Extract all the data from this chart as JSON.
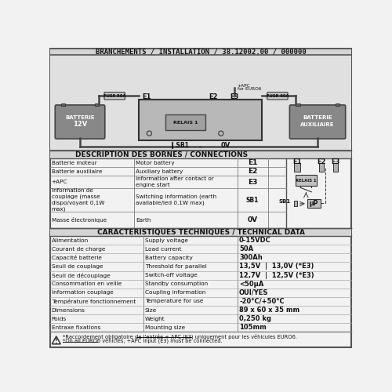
{
  "title": "BRANCHEMENTS / INSTALLATION / 38.12002.00 / 000000",
  "connections_title": "DESCRIPTION DES BORNES / CONNECTIONS",
  "connections": [
    [
      "Batterie moteur",
      "Motor battery",
      "E1"
    ],
    [
      "Batterie auxiliaire",
      "Auxiliary battery",
      "E2"
    ],
    [
      "+APC",
      "Information after contact or\nengine start",
      "E3"
    ],
    [
      "Information de\ncouplage (masse\ndispo/voyant 0,1W\nmax)",
      "Switching Information (earth\navailable/led 0.1W max)",
      "SB1"
    ],
    [
      "Masse électronique",
      "Earth",
      "0V"
    ]
  ],
  "tech_title": "CARACTERISTIQUES TECHNIQUES / TECHNICAL DATA",
  "tech_data": [
    [
      "Alimentation",
      "Supply voltage",
      "0-15VDC"
    ],
    [
      "Courant de charge",
      "Load current",
      "50A"
    ],
    [
      "Capacité batterie",
      "Battery capacity",
      "300Ah"
    ],
    [
      "Seuil de couplage",
      "Threshold for parallel",
      "13,5V  |  13,0V (*E3)"
    ],
    [
      "Seuil de découplage",
      "Switch-off voltage",
      "12,7V  |  12,5V (*E3)"
    ],
    [
      "Consommation en veille",
      "Standby consumption",
      "<50μA"
    ],
    [
      "Information couplage",
      "Coupling information",
      "OUI/YES"
    ],
    [
      "Température fonctionnement",
      "Temperature for use",
      "-20°C/+50°C"
    ],
    [
      "Dimensions",
      "Size",
      "89 x 60 x 35 mm"
    ],
    [
      "Poids",
      "Weight",
      "0,250 kg"
    ],
    [
      "Entraxe fixations",
      "Mounting size",
      "105mm"
    ]
  ],
  "footer_fr": "*Raccordement obligatoire de l'entrée + APC (E3) uniquement pour les véhicules EURO6.",
  "footer_en": "*On all EURO6 vehicles, +APC input (E3) must be connected.",
  "bg_color": "#f2f2f2",
  "header_bg": "#d4d4d4",
  "diagram_bg": "#e0e0e0",
  "table_header_bg": "#d4d4d4",
  "border_color": "#555555",
  "text_color": "#111111"
}
